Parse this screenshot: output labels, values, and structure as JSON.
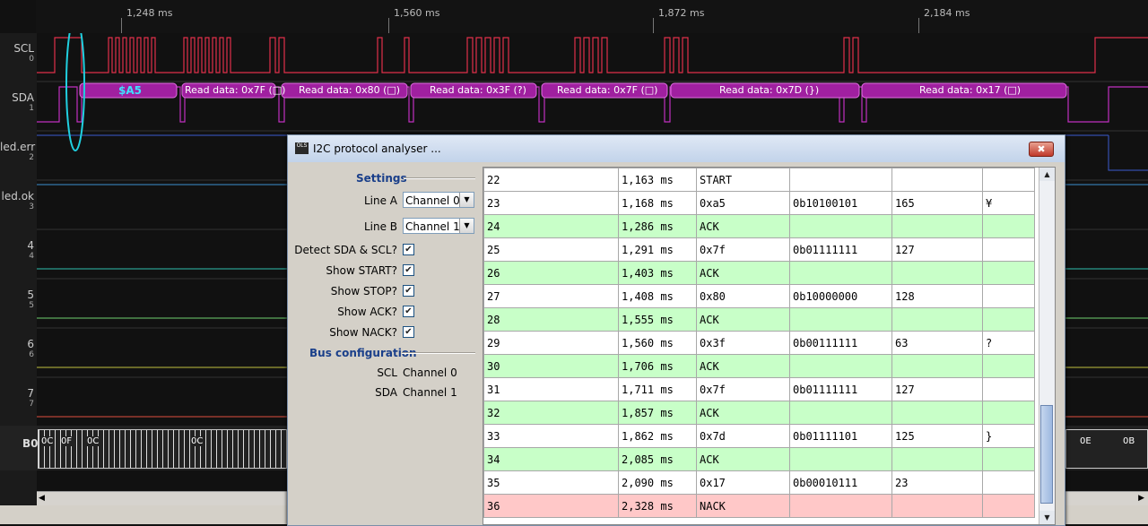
{
  "ruler": {
    "ticks": [
      "1,248 ms",
      "1,560 ms",
      "1,872 ms",
      "2,184 ms"
    ]
  },
  "channels": [
    {
      "name": "SCL",
      "index": "0",
      "color": "#e0304a"
    },
    {
      "name": "SDA",
      "index": "1",
      "color": "#c030c0"
    },
    {
      "name": "led.err",
      "index": "2",
      "color": "#3a5ad0"
    },
    {
      "name": "led.ok",
      "index": "3",
      "color": "#3a8fd0"
    },
    {
      "name": "4",
      "index": "4",
      "color": "#30c0b0"
    },
    {
      "name": "5",
      "index": "5",
      "color": "#70d070"
    },
    {
      "name": "6",
      "index": "6",
      "color": "#c0c040"
    },
    {
      "name": "7",
      "index": "7",
      "color": "#e05040"
    }
  ],
  "sda_annotations": [
    "$A5",
    "Read data: 0x7F (□)",
    "Read data: 0x80 (□)",
    "Read data: 0x3F (?)",
    "Read data: 0x7F (□)",
    "Read data: 0x7D (})",
    "Read data: 0x17 (□)"
  ],
  "bus": {
    "label": "B0",
    "left_values": [
      "0C",
      "0F",
      "0C",
      "0C"
    ],
    "right_values": [
      "0E",
      "0B"
    ]
  },
  "dialog": {
    "title": "I2C protocol analyser ...",
    "close_icon": "close-icon",
    "settings_header": "Settings",
    "line_a_label": "Line A",
    "line_a_value": "Channel 0",
    "line_b_label": "Line B",
    "line_b_value": "Channel 1",
    "checks": [
      {
        "label": "Detect SDA & SCL?",
        "checked": true
      },
      {
        "label": "Show START?",
        "checked": true
      },
      {
        "label": "Show STOP?",
        "checked": true
      },
      {
        "label": "Show ACK?",
        "checked": true
      },
      {
        "label": "Show NACK?",
        "checked": true
      }
    ],
    "bus_header": "Bus configuration",
    "scl_label": "SCL",
    "scl_value": "Channel 0",
    "sda_label": "SDA",
    "sda_value": "Channel 1"
  },
  "table": {
    "row_colors": {
      "data": "#ffffff",
      "ack": "#c8ffc8",
      "nack": "#ffc8c8",
      "start": "#ffffff"
    },
    "rows": [
      {
        "idx": "22",
        "time": "1,163 ms",
        "event": "START",
        "bin": "",
        "dec": "",
        "ascii": "",
        "kind": "start"
      },
      {
        "idx": "23",
        "time": "1,168 ms",
        "event": "0xa5",
        "bin": "0b10100101",
        "dec": "165",
        "ascii": "¥",
        "kind": "data"
      },
      {
        "idx": "24",
        "time": "1,286 ms",
        "event": "ACK",
        "bin": "",
        "dec": "",
        "ascii": "",
        "kind": "ack"
      },
      {
        "idx": "25",
        "time": "1,291 ms",
        "event": "0x7f",
        "bin": "0b01111111",
        "dec": "127",
        "ascii": "",
        "kind": "data"
      },
      {
        "idx": "26",
        "time": "1,403 ms",
        "event": "ACK",
        "bin": "",
        "dec": "",
        "ascii": "",
        "kind": "ack"
      },
      {
        "idx": "27",
        "time": "1,408 ms",
        "event": "0x80",
        "bin": "0b10000000",
        "dec": "128",
        "ascii": "",
        "kind": "data"
      },
      {
        "idx": "28",
        "time": "1,555 ms",
        "event": "ACK",
        "bin": "",
        "dec": "",
        "ascii": "",
        "kind": "ack"
      },
      {
        "idx": "29",
        "time": "1,560 ms",
        "event": "0x3f",
        "bin": "0b00111111",
        "dec": "63",
        "ascii": "?",
        "kind": "data"
      },
      {
        "idx": "30",
        "time": "1,706 ms",
        "event": "ACK",
        "bin": "",
        "dec": "",
        "ascii": "",
        "kind": "ack"
      },
      {
        "idx": "31",
        "time": "1,711 ms",
        "event": "0x7f",
        "bin": "0b01111111",
        "dec": "127",
        "ascii": "",
        "kind": "data"
      },
      {
        "idx": "32",
        "time": "1,857 ms",
        "event": "ACK",
        "bin": "",
        "dec": "",
        "ascii": "",
        "kind": "ack"
      },
      {
        "idx": "33",
        "time": "1,862 ms",
        "event": "0x7d",
        "bin": "0b01111101",
        "dec": "125",
        "ascii": "}",
        "kind": "data"
      },
      {
        "idx": "34",
        "time": "2,085 ms",
        "event": "ACK",
        "bin": "",
        "dec": "",
        "ascii": "",
        "kind": "ack"
      },
      {
        "idx": "35",
        "time": "2,090 ms",
        "event": "0x17",
        "bin": "0b00010111",
        "dec": "23",
        "ascii": "",
        "kind": "data"
      },
      {
        "idx": "36",
        "time": "2,328 ms",
        "event": "NACK",
        "bin": "",
        "dec": "",
        "ascii": "",
        "kind": "nack"
      }
    ]
  }
}
